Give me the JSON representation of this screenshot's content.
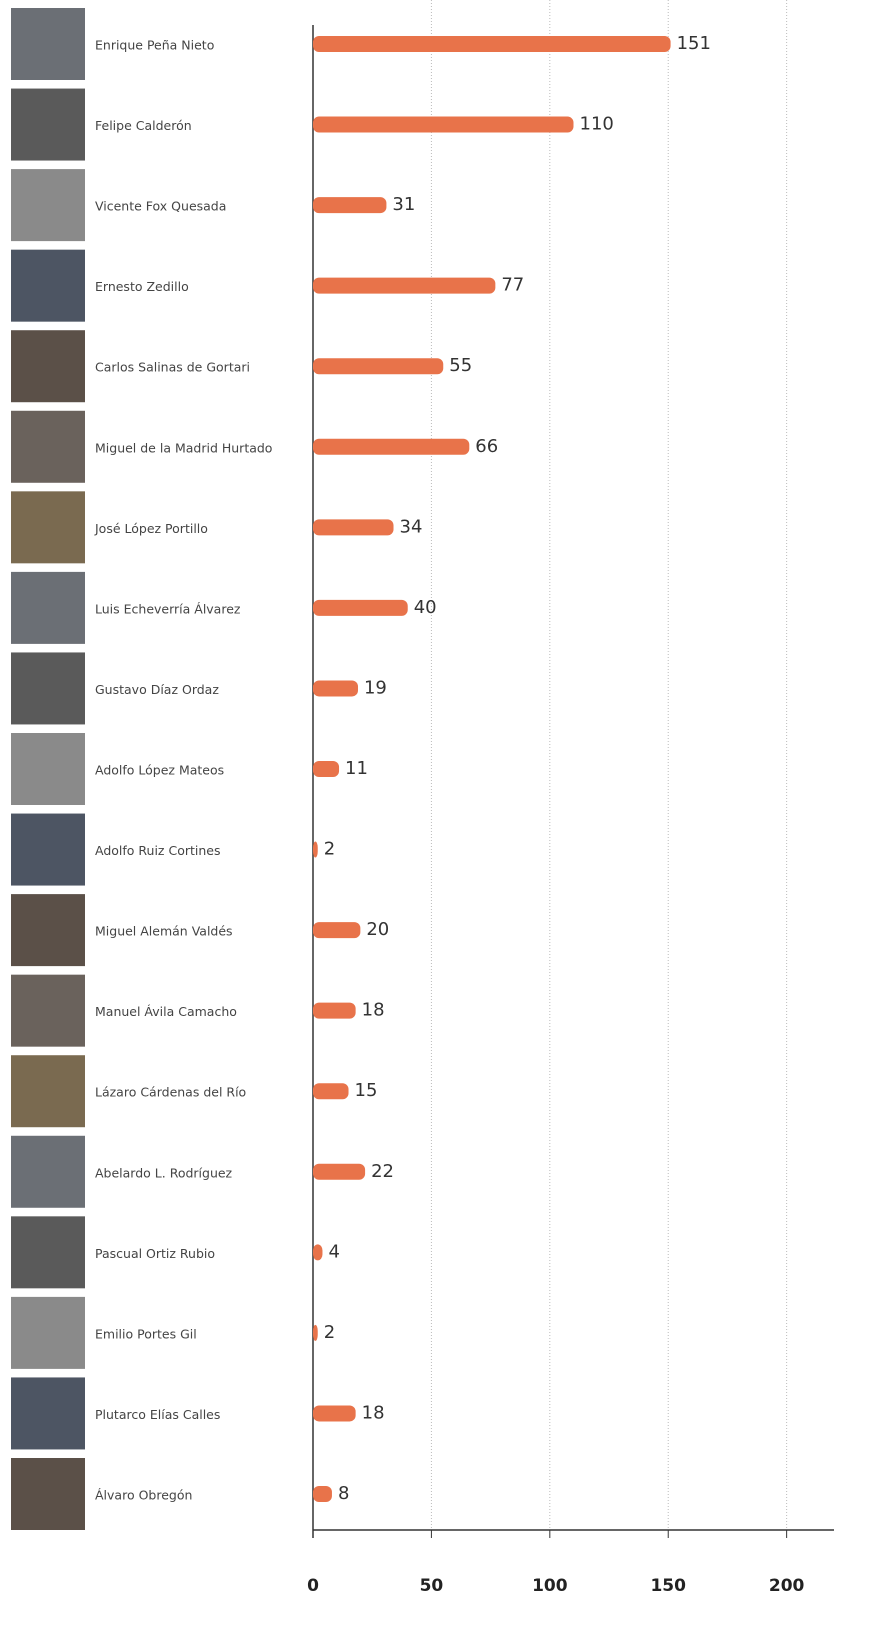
{
  "chart_data": {
    "type": "bar",
    "orientation": "horizontal",
    "categories": [
      "Enrique Peña Nieto",
      "Felipe Calderón",
      "Vicente Fox Quesada",
      "Ernesto Zedillo",
      "Carlos Salinas de Gortari",
      "Miguel de la Madrid  Hurtado",
      "José López Portillo",
      "Luis Echeverría Álvarez",
      "Gustavo Díaz Ordaz",
      "Adolfo López Mateos",
      "Adolfo Ruiz Cortines",
      "Miguel Alemán Valdés",
      "Manuel Ávila Camacho",
      "Lázaro Cárdenas del Río",
      "Abelardo L. Rodríguez",
      "Pascual Ortiz Rubio",
      "Emilio Portes Gil",
      "Plutarco Elías Calles",
      "Álvaro Obregón"
    ],
    "values": [
      151,
      110,
      31,
      77,
      55,
      66,
      34,
      40,
      19,
      11,
      2,
      20,
      18,
      15,
      22,
      4,
      2,
      18,
      8
    ],
    "color": "#e8734a",
    "xlim": [
      0,
      220
    ],
    "xticks": [
      0,
      50,
      100,
      150,
      200
    ],
    "grid": true
  }
}
